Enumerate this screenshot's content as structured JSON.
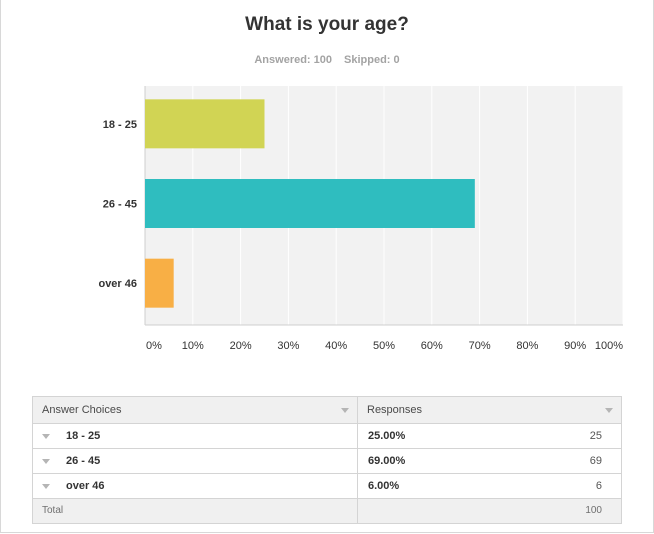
{
  "question": {
    "title": "What is your age?",
    "answered_label": "Answered: 100",
    "skipped_label": "Skipped: 0"
  },
  "chart_data": {
    "type": "bar",
    "orientation": "horizontal",
    "categories": [
      "18 - 25",
      "26 - 45",
      "over 46"
    ],
    "values": [
      25,
      69,
      6
    ],
    "colors": [
      "#d1d454",
      "#2fbdbf",
      "#f8af45"
    ],
    "xlim": [
      0,
      100
    ],
    "x_ticks": [
      "0%",
      "10%",
      "20%",
      "30%",
      "40%",
      "50%",
      "60%",
      "70%",
      "80%",
      "90%",
      "100%"
    ],
    "grid": true,
    "title": "What is your age?"
  },
  "table": {
    "headers": [
      "Answer Choices",
      "Responses"
    ],
    "rows": [
      {
        "choice": "18 - 25",
        "percent": "25.00%",
        "count": "25"
      },
      {
        "choice": "26 - 45",
        "percent": "69.00%",
        "count": "69"
      },
      {
        "choice": "over 46",
        "percent": "6.00%",
        "count": "6"
      }
    ],
    "total_label": "Total",
    "total_count": "100"
  }
}
